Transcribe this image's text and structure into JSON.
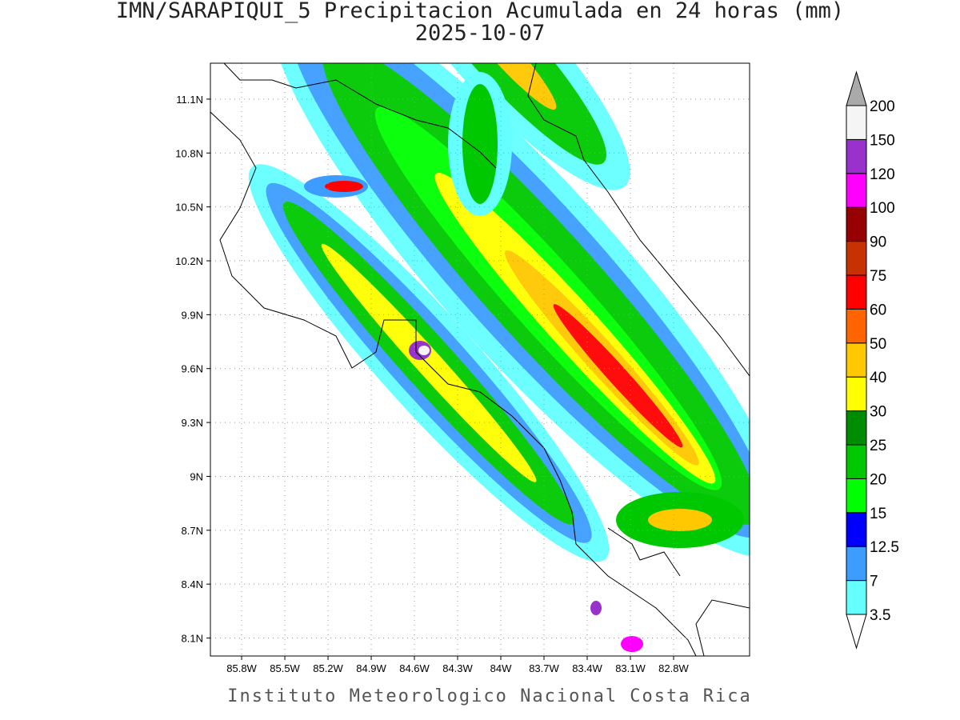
{
  "title": "IMN/SARAPIQUI_5 Precipitacion Acumulada en 24 horas (mm)",
  "subtitle": "2025-10-07",
  "footer": "Instituto Meteorologico Nacional Costa Rica",
  "map": {
    "xlim": [
      -86.017,
      -82.272
    ],
    "ylim": [
      8.0,
      11.3
    ],
    "grid": true,
    "xticks": [
      {
        "value": -85.8,
        "label": "85.8W"
      },
      {
        "value": -85.5,
        "label": "85.5W"
      },
      {
        "value": -85.2,
        "label": "85.2W"
      },
      {
        "value": -84.9,
        "label": "84.9W"
      },
      {
        "value": -84.6,
        "label": "84.6W"
      },
      {
        "value": -84.3,
        "label": "84.3W"
      },
      {
        "value": -84.0,
        "label": "84W"
      },
      {
        "value": -83.7,
        "label": "83.7W"
      },
      {
        "value": -83.4,
        "label": "83.4W"
      },
      {
        "value": -83.1,
        "label": "83.1W"
      },
      {
        "value": -82.8,
        "label": "82.8W"
      }
    ],
    "yticks": [
      {
        "value": 8.1,
        "label": "8.1N"
      },
      {
        "value": 8.4,
        "label": "8.4N"
      },
      {
        "value": 8.7,
        "label": "8.7N"
      },
      {
        "value": 9.0,
        "label": "9N"
      },
      {
        "value": 9.3,
        "label": "9.3N"
      },
      {
        "value": 9.6,
        "label": "9.6N"
      },
      {
        "value": 9.9,
        "label": "9.9N"
      },
      {
        "value": 10.2,
        "label": "10.2N"
      },
      {
        "value": 10.5,
        "label": "10.5N"
      },
      {
        "value": 10.8,
        "label": "10.8N"
      },
      {
        "value": 11.1,
        "label": "11.1N"
      }
    ]
  },
  "legend": {
    "levels": [
      3.5,
      7,
      12.5,
      15,
      20,
      25,
      30,
      40,
      50,
      60,
      75,
      90,
      100,
      120,
      150,
      200
    ],
    "colors": [
      "#66ffff",
      "#3d9cff",
      "#0000ff",
      "#00ff00",
      "#00c800",
      "#008c00",
      "#ffff00",
      "#ffc800",
      "#ff6400",
      "#ff0000",
      "#c83200",
      "#960000",
      "#ff00ff",
      "#9932cc",
      "#f5f5f5"
    ],
    "under_color": "#ffffff",
    "over_color": "#aaaaaa"
  }
}
